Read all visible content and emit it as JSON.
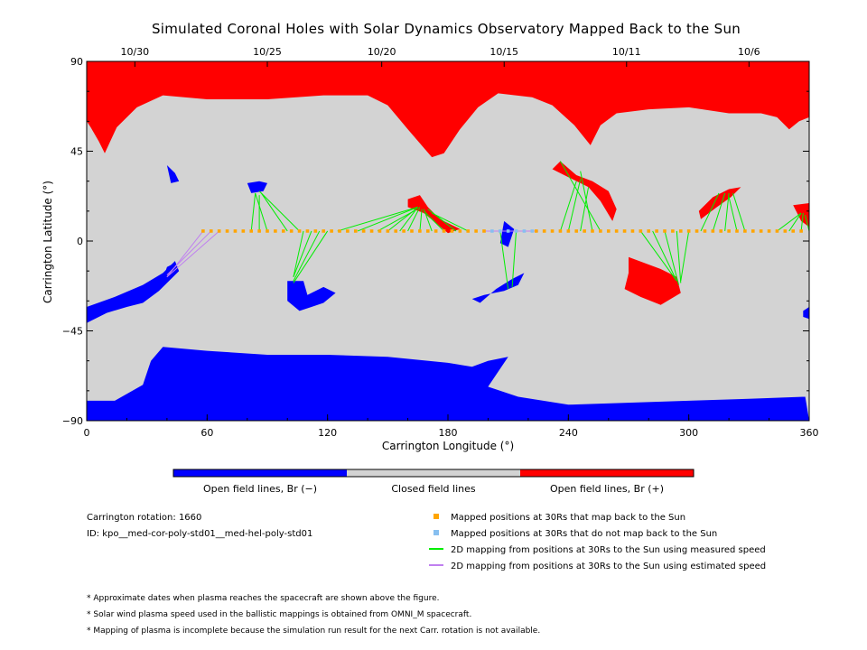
{
  "chart_data": {
    "type": "map",
    "title": "Simulated Coronal Holes with Solar Dynamics Observatory Mapped Back to the Sun",
    "xlabel": "Carrington Longitude (°)",
    "ylabel": "Carrington Latitude (°)",
    "xlim": [
      0,
      360
    ],
    "ylim": [
      -90,
      90
    ],
    "x_ticks": [
      "0",
      "60",
      "120",
      "180",
      "240",
      "300",
      "360"
    ],
    "y_ticks": [
      "90",
      "45",
      "0",
      "−45",
      "−90"
    ],
    "date_ticks": [
      {
        "label": "10/30",
        "lon": 24
      },
      {
        "label": "10/25",
        "lon": 90
      },
      {
        "label": "10/20",
        "lon": 147
      },
      {
        "label": "10/15",
        "lon": 208
      },
      {
        "label": "10/11",
        "lon": 269
      },
      {
        "label": "10/6",
        "lon": 330
      }
    ],
    "colorbar": [
      {
        "label": "Open field lines, Br (−)",
        "color": "#0000ff"
      },
      {
        "label": "Closed field lines",
        "color": "#d3d3d3"
      },
      {
        "label": "Open field lines, Br (+)",
        "color": "#ff0000"
      }
    ],
    "regions": {
      "north_polar_positive": [
        [
          0,
          90
        ],
        [
          360,
          90
        ],
        [
          360,
          62
        ],
        [
          355,
          60
        ],
        [
          350,
          56
        ],
        [
          344,
          62
        ],
        [
          336,
          64
        ],
        [
          320,
          64
        ],
        [
          300,
          67
        ],
        [
          280,
          66
        ],
        [
          264,
          64
        ],
        [
          256,
          58
        ],
        [
          251,
          48
        ],
        [
          243,
          58
        ],
        [
          232,
          68
        ],
        [
          222,
          72
        ],
        [
          205,
          74
        ],
        [
          195,
          67
        ],
        [
          186,
          56
        ],
        [
          178,
          44
        ],
        [
          172,
          42
        ],
        [
          160,
          56
        ],
        [
          150,
          68
        ],
        [
          140,
          73
        ],
        [
          118,
          73
        ],
        [
          90,
          71
        ],
        [
          60,
          71
        ],
        [
          38,
          73
        ],
        [
          25,
          67
        ],
        [
          15,
          57
        ],
        [
          9,
          44
        ],
        [
          6,
          50
        ],
        [
          2,
          57
        ],
        [
          0,
          60
        ]
      ],
      "south_polar_negative": [
        [
          0,
          -80
        ],
        [
          14,
          -80
        ],
        [
          28,
          -72
        ],
        [
          32,
          -60
        ],
        [
          38,
          -53
        ],
        [
          60,
          -55
        ],
        [
          90,
          -57
        ],
        [
          120,
          -57
        ],
        [
          150,
          -58
        ],
        [
          180,
          -61
        ],
        [
          192,
          -63
        ],
        [
          200,
          -60
        ],
        [
          210,
          -58
        ],
        [
          200,
          -73
        ],
        [
          215,
          -78
        ],
        [
          240,
          -82
        ],
        [
          300,
          -80
        ],
        [
          330,
          -79
        ],
        [
          358,
          -78
        ],
        [
          360,
          -90
        ],
        [
          0,
          -90
        ]
      ],
      "ch_neg_southwest": [
        [
          0,
          -33
        ],
        [
          14,
          -28
        ],
        [
          28,
          -22
        ],
        [
          38,
          -16
        ],
        [
          44,
          -10
        ],
        [
          46,
          -15
        ],
        [
          36,
          -25
        ],
        [
          28,
          -31
        ],
        [
          20,
          -33
        ],
        [
          10,
          -36
        ],
        [
          0,
          -41
        ]
      ],
      "ch_neg_island": [
        [
          100,
          -20
        ],
        [
          108,
          -20
        ],
        [
          110,
          -27
        ],
        [
          118,
          -23
        ],
        [
          124,
          -26
        ],
        [
          118,
          -31
        ],
        [
          112,
          -33
        ],
        [
          106,
          -35
        ],
        [
          100,
          -30
        ]
      ],
      "ch_neg_small_1": [
        [
          80,
          29
        ],
        [
          86,
          30
        ],
        [
          90,
          29
        ],
        [
          88,
          25
        ],
        [
          82,
          24
        ]
      ],
      "ch_neg_small_2": [
        [
          40,
          -13
        ],
        [
          44,
          -11
        ],
        [
          42,
          -19
        ],
        [
          38,
          -19
        ]
      ],
      "ch_neg_small_3": [
        [
          198,
          -27
        ],
        [
          208,
          -25
        ],
        [
          215,
          -22
        ],
        [
          218,
          -16
        ],
        [
          212,
          -19
        ],
        [
          204,
          -24
        ],
        [
          196,
          -31
        ],
        [
          192,
          -29
        ]
      ],
      "ch_neg_small_4": [
        [
          208,
          10
        ],
        [
          213,
          6
        ],
        [
          210,
          -3
        ],
        [
          206,
          -1
        ]
      ],
      "ch_neg_small_5": [
        [
          40,
          38
        ],
        [
          44,
          34
        ],
        [
          46,
          30
        ],
        [
          42,
          29
        ]
      ],
      "ch_neg_small_6": [
        [
          357,
          -35
        ],
        [
          360,
          -33
        ],
        [
          360,
          -39
        ],
        [
          357,
          -38
        ]
      ],
      "ch_pos_mid_1": [
        [
          160,
          21
        ],
        [
          166,
          23
        ],
        [
          170,
          17
        ],
        [
          176,
          11
        ],
        [
          186,
          6
        ],
        [
          180,
          4
        ],
        [
          174,
          9
        ],
        [
          168,
          14
        ],
        [
          160,
          17
        ]
      ],
      "ch_pos_mid_2": [
        [
          236,
          40
        ],
        [
          244,
          33
        ],
        [
          252,
          30
        ],
        [
          260,
          25
        ],
        [
          264,
          16
        ],
        [
          262,
          10
        ],
        [
          256,
          20
        ],
        [
          250,
          27
        ],
        [
          240,
          32
        ],
        [
          232,
          36
        ]
      ],
      "ch_pos_mid_3": [
        [
          270,
          -8
        ],
        [
          286,
          -14
        ],
        [
          294,
          -18
        ],
        [
          296,
          -26
        ],
        [
          286,
          -32
        ],
        [
          276,
          -28
        ],
        [
          268,
          -24
        ],
        [
          270,
          -16
        ]
      ],
      "ch_pos_mid_4": [
        [
          305,
          15
        ],
        [
          312,
          22
        ],
        [
          320,
          26
        ],
        [
          326,
          27
        ],
        [
          321,
          22
        ],
        [
          314,
          17
        ],
        [
          306,
          11
        ]
      ],
      "ch_pos_mid_5": [
        [
          352,
          18
        ],
        [
          360,
          19
        ],
        [
          360,
          7
        ],
        [
          356,
          10
        ]
      ]
    },
    "mapped_points_orange_lon": [
      58,
      62,
      66,
      70,
      74,
      78,
      82,
      86,
      90,
      94,
      98,
      102,
      106,
      110,
      114,
      118,
      122,
      126,
      130,
      134,
      138,
      142,
      146,
      150,
      154,
      158,
      162,
      166,
      170,
      174,
      178,
      182,
      186,
      190,
      194,
      198,
      224,
      228,
      232,
      236,
      240,
      244,
      248,
      252,
      256,
      260,
      264,
      268,
      272,
      276,
      280,
      284,
      288,
      292,
      296,
      300,
      304,
      308,
      312,
      316,
      320,
      324,
      328,
      332,
      336,
      340,
      344,
      348,
      352,
      356
    ],
    "mapped_points_blue_lon": [
      202,
      206,
      210,
      214,
      218,
      222
    ],
    "mapped_points_lat": 5,
    "lines_green": [
      [
        [
          90,
          5
        ],
        [
          84,
          24
        ]
      ],
      [
        [
          82,
          5
        ],
        [
          84,
          24
        ]
      ],
      [
        [
          86,
          5
        ],
        [
          86,
          23
        ]
      ],
      [
        [
          100,
          5
        ],
        [
          87,
          24
        ]
      ],
      [
        [
          106,
          5
        ],
        [
          86,
          25
        ]
      ],
      [
        [
          108,
          5
        ],
        [
          103,
          -18
        ]
      ],
      [
        [
          112,
          5
        ],
        [
          103,
          -18
        ]
      ],
      [
        [
          116,
          5
        ],
        [
          103,
          -20
        ]
      ],
      [
        [
          120,
          5
        ],
        [
          103,
          -21
        ]
      ],
      [
        [
          125,
          5
        ],
        [
          165,
          17
        ]
      ],
      [
        [
          135,
          5
        ],
        [
          165,
          17
        ]
      ],
      [
        [
          145,
          5
        ],
        [
          163,
          15
        ]
      ],
      [
        [
          150,
          5
        ],
        [
          164,
          16
        ]
      ],
      [
        [
          156,
          5
        ],
        [
          165,
          17
        ]
      ],
      [
        [
          160,
          5
        ],
        [
          166,
          17
        ]
      ],
      [
        [
          166,
          5
        ],
        [
          167,
          16
        ]
      ],
      [
        [
          172,
          5
        ],
        [
          168,
          16
        ]
      ],
      [
        [
          178,
          5
        ],
        [
          168,
          15
        ]
      ],
      [
        [
          184,
          5
        ],
        [
          170,
          16
        ]
      ],
      [
        [
          190,
          5
        ],
        [
          172,
          14
        ]
      ],
      [
        [
          206,
          5
        ],
        [
          210,
          -24
        ]
      ],
      [
        [
          214,
          5
        ],
        [
          212,
          -23
        ]
      ],
      [
        [
          236,
          5
        ],
        [
          244,
          30
        ]
      ],
      [
        [
          240,
          5
        ],
        [
          246,
          31
        ]
      ],
      [
        [
          246,
          5
        ],
        [
          250,
          27
        ]
      ],
      [
        [
          252,
          5
        ],
        [
          246,
          35
        ]
      ],
      [
        [
          256,
          5
        ],
        [
          236,
          40
        ]
      ],
      [
        [
          276,
          5
        ],
        [
          294,
          -20
        ]
      ],
      [
        [
          282,
          5
        ],
        [
          294,
          -20
        ]
      ],
      [
        [
          288,
          5
        ],
        [
          295,
          -22
        ]
      ],
      [
        [
          294,
          5
        ],
        [
          296,
          -21
        ]
      ],
      [
        [
          300,
          5
        ],
        [
          296,
          -20
        ]
      ],
      [
        [
          306,
          5
        ],
        [
          315,
          24
        ]
      ],
      [
        [
          312,
          5
        ],
        [
          318,
          24
        ]
      ],
      [
        [
          318,
          5
        ],
        [
          320,
          24
        ]
      ],
      [
        [
          324,
          5
        ],
        [
          320,
          22
        ]
      ],
      [
        [
          328,
          5
        ],
        [
          322,
          24
        ]
      ],
      [
        [
          344,
          5
        ],
        [
          356,
          14
        ]
      ],
      [
        [
          350,
          5
        ],
        [
          356,
          14
        ]
      ],
      [
        [
          356,
          5
        ],
        [
          357,
          14
        ]
      ],
      [
        [
          360,
          5
        ],
        [
          358,
          13
        ]
      ]
    ],
    "lines_purple": [
      [
        [
          58,
          5
        ],
        [
          40,
          -18
        ]
      ],
      [
        [
          62,
          5
        ],
        [
          40,
          -17
        ]
      ],
      [
        [
          66,
          5
        ],
        [
          40,
          -18
        ]
      ],
      [
        [
          198,
          5
        ],
        [
          225,
          5
        ]
      ]
    ],
    "legend": [
      {
        "marker": "square",
        "color": "#ffa500",
        "label": "Mapped positions at 30Rs that map back to the Sun"
      },
      {
        "marker": "square",
        "color": "#87bff0",
        "label": "Mapped positions at 30Rs that do not map back to the Sun"
      },
      {
        "marker": "line",
        "color": "#00ee00",
        "label": "2D mapping from positions at 30Rs to the Sun using measured speed"
      },
      {
        "marker": "line",
        "color": "#c080f0",
        "label": "2D mapping from positions at 30Rs to the Sun using estimated speed"
      }
    ],
    "info": [
      "Carrington rotation: 1660",
      "ID: kpo__med-cor-poly-std01__med-hel-poly-std01"
    ],
    "notes": [
      "* Approximate dates when plasma reaches the spacecraft are shown above the figure.",
      "* Solar wind plasma speed used in the ballistic mappings is obtained from OMNI_M spacecraft.",
      "* Mapping of plasma is incomplete because the simulation run result for the next Carr. rotation is not available."
    ],
    "colors": {
      "background": "#d3d3d3",
      "negative": "#0000ff",
      "positive": "#ff0000"
    }
  }
}
